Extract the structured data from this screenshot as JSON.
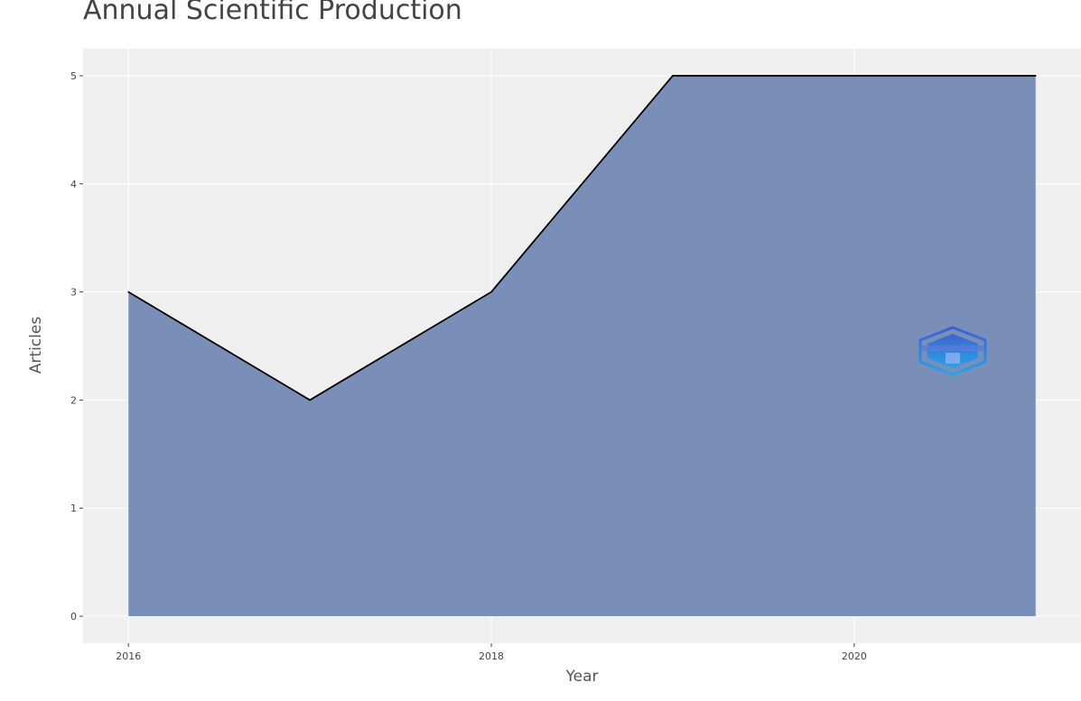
{
  "chart_data": {
    "type": "area",
    "title": "Annual Scientific Production",
    "xlabel": "Year",
    "ylabel": "Articles",
    "x": [
      2016,
      2017,
      2018,
      2019,
      2020,
      2021
    ],
    "series": [
      {
        "values": [
          3,
          2,
          3,
          5,
          5,
          5
        ]
      }
    ],
    "xlim": [
      2015.75,
      2021.25
    ],
    "ylim": [
      -0.25,
      5.25
    ],
    "x_ticks": [
      2016,
      2018,
      2020
    ],
    "y_ticks": [
      0,
      1,
      2,
      3,
      4,
      5
    ],
    "x_tick_labels": [
      "2016",
      "2018",
      "2020"
    ],
    "y_tick_labels": [
      "0",
      "1",
      "2",
      "3",
      "4",
      "5"
    ],
    "grid": true,
    "colors": {
      "fill": "#7a8fb8",
      "line": "#000000",
      "panel": "#efefef",
      "grid": "#ffffff"
    },
    "watermark": "bibliometrix-logo-icon"
  }
}
